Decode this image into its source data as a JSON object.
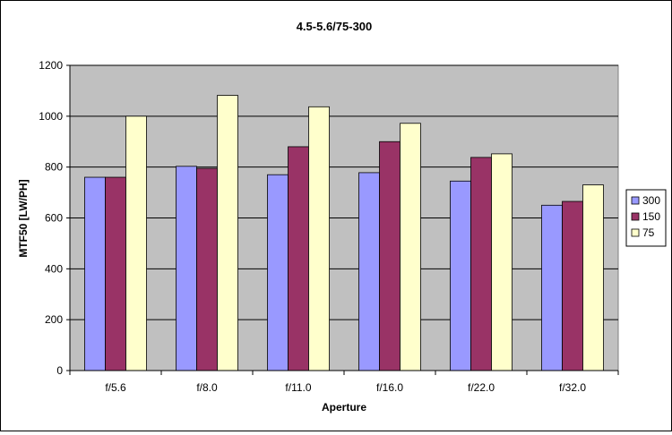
{
  "chart_data": {
    "type": "bar",
    "title": "4.5-5.6/75-300",
    "xlabel": "Aperture",
    "ylabel": "MTF50 [LW/PH]",
    "ylim": [
      0,
      1200
    ],
    "yticks": [
      0,
      200,
      400,
      600,
      800,
      1000,
      1200
    ],
    "grid": true,
    "legend_position": "right",
    "categories": [
      "f/5.6",
      "f/8.0",
      "f/11.0",
      "f/16.0",
      "f/22.0",
      "f/32.0"
    ],
    "series": [
      {
        "name": "300",
        "color": "#9999ff",
        "values": [
          760,
          803,
          770,
          778,
          745,
          650
        ]
      },
      {
        "name": "150",
        "color": "#993366",
        "values": [
          760,
          795,
          880,
          900,
          838,
          665
        ]
      },
      {
        "name": "75",
        "color": "#ffffcc",
        "values": [
          1000,
          1082,
          1037,
          972,
          852,
          730
        ]
      }
    ],
    "plot_background": "#c0c0c0"
  }
}
